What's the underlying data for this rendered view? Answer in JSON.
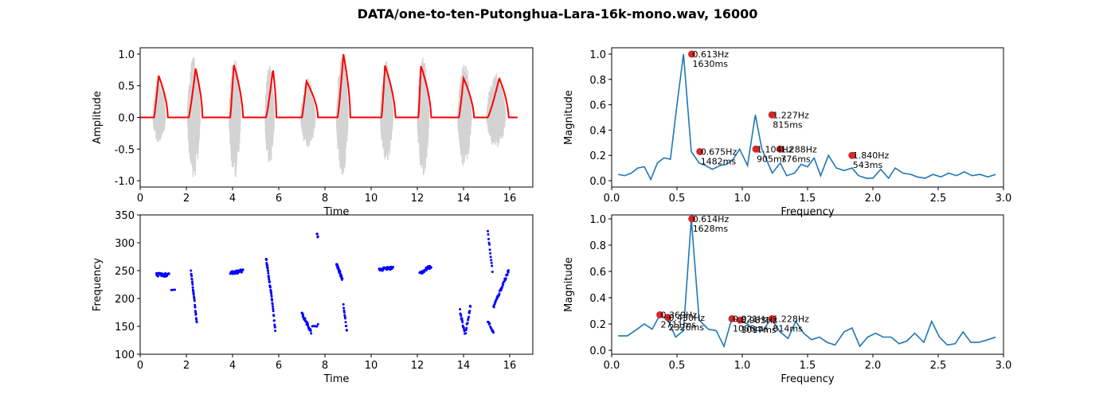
{
  "figure": {
    "title": "DATA/one-to-ten-Putonghua-Lara-16k-mono.wav, 16000"
  },
  "colors": {
    "waveform": "#d3d3d3",
    "envelope": "#ff0000",
    "pitch_points": "#0000ff",
    "spectrum_line": "#1f77b4",
    "peak_marker": "#d62728"
  },
  "chart_data": [
    {
      "id": "amplitude",
      "type": "line",
      "xlabel": "Time",
      "ylabel": "Amplitude",
      "xlim": [
        0,
        17
      ],
      "ylim": [
        -1.1,
        1.1
      ],
      "xticks": [
        0,
        2,
        4,
        6,
        8,
        10,
        12,
        14,
        16
      ],
      "yticks": [
        -1.0,
        -0.5,
        0.0,
        0.5,
        1.0
      ],
      "segments": [
        {
          "start": 0.55,
          "end": 1.15,
          "peak_time": 0.8,
          "peak": 0.66,
          "wave_max": 0.62,
          "wave_min": -0.42
        },
        {
          "start": 2.05,
          "end": 2.65,
          "peak_time": 2.4,
          "peak": 0.77,
          "wave_max": 1.0,
          "wave_min": -0.98
        },
        {
          "start": 3.85,
          "end": 4.4,
          "peak_time": 4.05,
          "peak": 0.84,
          "wave_max": 0.96,
          "wave_min": -0.98
        },
        {
          "start": 5.4,
          "end": 5.85,
          "peak_time": 5.75,
          "peak": 0.76,
          "wave_max": 0.84,
          "wave_min": -0.76
        },
        {
          "start": 6.95,
          "end": 7.65,
          "peak_time": 7.2,
          "peak": 0.57,
          "wave_max": 0.62,
          "wave_min": -0.52
        },
        {
          "start": 8.5,
          "end": 9.05,
          "peak_time": 8.8,
          "peak": 1.0,
          "wave_max": 0.98,
          "wave_min": -0.94
        },
        {
          "start": 10.4,
          "end": 11.0,
          "peak_time": 10.6,
          "peak": 0.82,
          "wave_max": 0.9,
          "wave_min": -0.72
        },
        {
          "start": 12.0,
          "end": 12.55,
          "peak_time": 12.15,
          "peak": 0.82,
          "wave_max": 0.98,
          "wave_min": -0.96
        },
        {
          "start": 13.75,
          "end": 14.4,
          "peak_time": 14.0,
          "peak": 0.62,
          "wave_max": 0.88,
          "wave_min": -0.8
        },
        {
          "start": 15.0,
          "end": 15.9,
          "peak_time": 15.55,
          "peak": 0.62,
          "wave_max": 0.7,
          "wave_min": -0.5
        }
      ]
    },
    {
      "id": "spectrum-top",
      "type": "line",
      "xlabel": "Frequency",
      "ylabel": "Magnitude",
      "xlim": [
        0.0,
        3.0
      ],
      "ylim": [
        -0.05,
        1.05
      ],
      "xticks": [
        0.0,
        0.5,
        1.0,
        1.5,
        2.0,
        2.5,
        3.0
      ],
      "yticks": [
        0.0,
        0.2,
        0.4,
        0.6,
        0.8,
        1.0
      ],
      "x": [
        0.05,
        0.1,
        0.15,
        0.2,
        0.25,
        0.3,
        0.35,
        0.4,
        0.45,
        0.5,
        0.55,
        0.61,
        0.67,
        0.72,
        0.77,
        0.83,
        0.88,
        0.93,
        0.98,
        1.04,
        1.1,
        1.15,
        1.23,
        1.29,
        1.34,
        1.4,
        1.45,
        1.5,
        1.55,
        1.6,
        1.66,
        1.72,
        1.78,
        1.84,
        1.89,
        1.95,
        2.0,
        2.06,
        2.12,
        2.17,
        2.23,
        2.29,
        2.34,
        2.4,
        2.46,
        2.52,
        2.58,
        2.64,
        2.7,
        2.76,
        2.82,
        2.88,
        2.94
      ],
      "y": [
        0.05,
        0.04,
        0.06,
        0.1,
        0.11,
        0.01,
        0.14,
        0.18,
        0.17,
        0.6,
        1.0,
        0.23,
        0.14,
        0.12,
        0.09,
        0.12,
        0.13,
        0.17,
        0.25,
        0.12,
        0.52,
        0.25,
        0.06,
        0.14,
        0.04,
        0.06,
        0.13,
        0.11,
        0.18,
        0.04,
        0.2,
        0.1,
        0.08,
        0.1,
        0.04,
        0.02,
        0.02,
        0.09,
        0.02,
        0.1,
        0.06,
        0.05,
        0.03,
        0.02,
        0.05,
        0.03,
        0.06,
        0.04,
        0.07,
        0.04,
        0.05,
        0.03,
        0.05
      ],
      "peaks": [
        {
          "x": 0.613,
          "y": 1.0,
          "label_freq": "0.613Hz",
          "label_ms": "1630ms"
        },
        {
          "x": 0.675,
          "y": 0.23,
          "label_freq": "0.675Hz",
          "label_ms": "1482ms"
        },
        {
          "x": 1.104,
          "y": 0.25,
          "label_freq": "1.104Hz",
          "label_ms": "905ms"
        },
        {
          "x": 1.227,
          "y": 0.52,
          "label_freq": "1.227Hz",
          "label_ms": "815ms"
        },
        {
          "x": 1.288,
          "y": 0.25,
          "label_freq": "1.288Hz",
          "label_ms": "776ms"
        },
        {
          "x": 1.84,
          "y": 0.2,
          "label_freq": "1.840Hz",
          "label_ms": "543ms"
        }
      ]
    },
    {
      "id": "pitch",
      "type": "scatter",
      "xlabel": "Time",
      "ylabel": "Frequency",
      "xlim": [
        0,
        17
      ],
      "ylim": [
        100,
        350
      ],
      "xticks": [
        0,
        2,
        4,
        6,
        8,
        10,
        12,
        14,
        16
      ],
      "yticks": [
        100,
        150,
        200,
        250,
        300,
        350
      ],
      "tracks": [
        {
          "t0": 0.7,
          "t1": 1.25,
          "f0": 243,
          "f1": 242,
          "n": 30
        },
        {
          "t0": 1.35,
          "t1": 1.5,
          "f0": 213,
          "f1": 213,
          "n": 3
        },
        {
          "t0": 2.2,
          "t1": 2.45,
          "f0": 250,
          "f1": 158,
          "n": 30
        },
        {
          "t0": 3.9,
          "t1": 4.45,
          "f0": 245,
          "f1": 250,
          "n": 30
        },
        {
          "t0": 5.45,
          "t1": 5.7,
          "f0": 272,
          "f1": 200,
          "n": 30
        },
        {
          "t0": 5.7,
          "t1": 5.85,
          "f0": 200,
          "f1": 142,
          "n": 15
        },
        {
          "t0": 7.0,
          "t1": 7.4,
          "f0": 173,
          "f1": 140,
          "n": 30
        },
        {
          "t0": 7.45,
          "t1": 7.7,
          "f0": 148,
          "f1": 152,
          "n": 6
        },
        {
          "t0": 7.65,
          "t1": 7.7,
          "f0": 315,
          "f1": 310,
          "n": 4
        },
        {
          "t0": 8.5,
          "t1": 8.75,
          "f0": 262,
          "f1": 235,
          "n": 25
        },
        {
          "t0": 8.8,
          "t1": 8.95,
          "f0": 190,
          "f1": 140,
          "n": 12
        },
        {
          "t0": 10.35,
          "t1": 10.95,
          "f0": 252,
          "f1": 255,
          "n": 30
        },
        {
          "t0": 12.1,
          "t1": 12.6,
          "f0": 245,
          "f1": 258,
          "n": 30
        },
        {
          "t0": 13.85,
          "t1": 14.05,
          "f0": 178,
          "f1": 138,
          "n": 16
        },
        {
          "t0": 14.1,
          "t1": 14.3,
          "f0": 140,
          "f1": 188,
          "n": 14
        },
        {
          "t0": 15.05,
          "t1": 15.25,
          "f0": 320,
          "f1": 250,
          "n": 12
        },
        {
          "t0": 15.05,
          "t1": 15.3,
          "f0": 160,
          "f1": 138,
          "n": 10
        },
        {
          "t0": 15.3,
          "t1": 15.95,
          "f0": 185,
          "f1": 250,
          "n": 40
        }
      ]
    },
    {
      "id": "spectrum-bottom",
      "type": "line",
      "xlabel": "Frequency",
      "ylabel": "Magnitude",
      "xlim": [
        0.0,
        3.0
      ],
      "ylim": [
        -0.03,
        1.03
      ],
      "xticks": [
        0.0,
        0.5,
        1.0,
        1.5,
        2.0,
        2.5,
        3.0
      ],
      "yticks": [
        0.0,
        0.2,
        0.4,
        0.6,
        0.8,
        1.0
      ],
      "x": [
        0.05,
        0.12,
        0.18,
        0.25,
        0.31,
        0.37,
        0.43,
        0.49,
        0.55,
        0.61,
        0.67,
        0.74,
        0.8,
        0.86,
        0.92,
        0.98,
        1.04,
        1.1,
        1.16,
        1.22,
        1.29,
        1.35,
        1.41,
        1.47,
        1.53,
        1.59,
        1.65,
        1.71,
        1.78,
        1.84,
        1.9,
        1.96,
        2.02,
        2.08,
        2.14,
        2.2,
        2.26,
        2.32,
        2.39,
        2.45,
        2.51,
        2.57,
        2.63,
        2.69,
        2.75,
        2.81,
        2.88,
        2.94
      ],
      "y": [
        0.11,
        0.11,
        0.15,
        0.2,
        0.16,
        0.27,
        0.23,
        0.1,
        0.15,
        1.0,
        0.23,
        0.16,
        0.15,
        0.03,
        0.24,
        0.23,
        0.2,
        0.15,
        0.15,
        0.24,
        0.14,
        0.09,
        0.22,
        0.13,
        0.08,
        0.1,
        0.06,
        0.04,
        0.14,
        0.17,
        0.03,
        0.1,
        0.13,
        0.1,
        0.1,
        0.05,
        0.07,
        0.13,
        0.06,
        0.22,
        0.1,
        0.04,
        0.05,
        0.14,
        0.06,
        0.06,
        0.08,
        0.1
      ],
      "peaks": [
        {
          "x": 0.369,
          "y": 0.27,
          "label_freq": "0.369Hz",
          "label_ms": "2711ms"
        },
        {
          "x": 0.43,
          "y": 0.25,
          "label_freq": "0.430Hz",
          "label_ms": "2326ms"
        },
        {
          "x": 0.921,
          "y": 0.24,
          "label_freq": "0.921Hz",
          "label_ms": "1086ms"
        },
        {
          "x": 0.983,
          "y": 0.23,
          "label_freq": "0.983Hz",
          "label_ms": "1017ms"
        },
        {
          "x": 0.614,
          "y": 1.0,
          "label_freq": "0.614Hz",
          "label_ms": "1628ms"
        },
        {
          "x": 1.228,
          "y": 0.24,
          "label_freq": "1.228Hz",
          "label_ms": "814ms"
        }
      ]
    }
  ]
}
